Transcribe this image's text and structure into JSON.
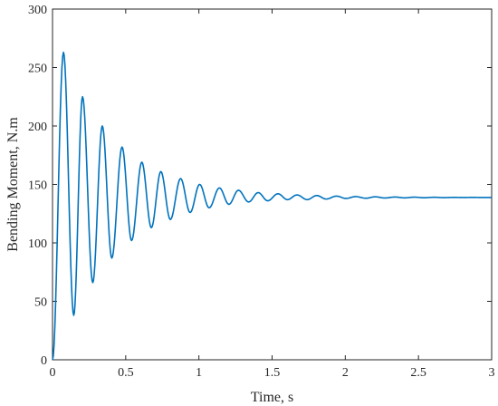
{
  "chart_data": {
    "type": "line",
    "title": "",
    "xlabel": "Time, s",
    "ylabel": "Bending Moment, N.m",
    "xlim": [
      0,
      3
    ],
    "ylim": [
      0,
      300
    ],
    "xticks": [
      0,
      0.5,
      1,
      1.5,
      2,
      2.5,
      3
    ],
    "xtick_labels": [
      "0",
      "0.5",
      "1",
      "1.5",
      "2",
      "2.5",
      "3"
    ],
    "yticks": [
      0,
      50,
      100,
      150,
      200,
      250,
      300
    ],
    "ytick_labels": [
      "0",
      "50",
      "100",
      "150",
      "200",
      "250",
      "300"
    ],
    "grid": false,
    "series": [
      {
        "color": "#0072BD",
        "points": [
          [
            0.0,
            0
          ],
          [
            0.075,
            263
          ],
          [
            0.145,
            38
          ],
          [
            0.205,
            225
          ],
          [
            0.275,
            66
          ],
          [
            0.34,
            200
          ],
          [
            0.405,
            87
          ],
          [
            0.475,
            182
          ],
          [
            0.54,
            102
          ],
          [
            0.61,
            169
          ],
          [
            0.675,
            113
          ],
          [
            0.74,
            161
          ],
          [
            0.805,
            120
          ],
          [
            0.875,
            155
          ],
          [
            0.94,
            126
          ],
          [
            1.005,
            150
          ],
          [
            1.07,
            130
          ],
          [
            1.14,
            147
          ],
          [
            1.205,
            133
          ],
          [
            1.27,
            145
          ],
          [
            1.34,
            135
          ],
          [
            1.405,
            143
          ],
          [
            1.47,
            136
          ],
          [
            1.54,
            142
          ],
          [
            1.605,
            137
          ],
          [
            1.67,
            141
          ],
          [
            1.74,
            137
          ],
          [
            1.805,
            140.5
          ],
          [
            1.87,
            137.5
          ],
          [
            1.94,
            140
          ],
          [
            2.005,
            138
          ],
          [
            2.07,
            139.6
          ],
          [
            2.14,
            138.2
          ],
          [
            2.205,
            139.4
          ],
          [
            2.27,
            138.4
          ],
          [
            2.34,
            139.2
          ],
          [
            2.405,
            138.5
          ],
          [
            2.47,
            139.1
          ],
          [
            2.54,
            138.6
          ],
          [
            2.605,
            139
          ],
          [
            2.67,
            138.7
          ],
          [
            2.74,
            138.9
          ],
          [
            2.805,
            138.8
          ],
          [
            2.87,
            138.9
          ],
          [
            2.94,
            138.8
          ],
          [
            3.0,
            138.8
          ]
        ]
      }
    ]
  }
}
